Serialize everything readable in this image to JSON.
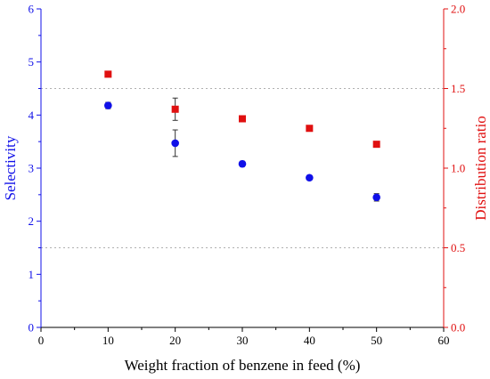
{
  "chart_data": {
    "type": "scatter",
    "xlabel": "Weight fraction of benzene in feed (%)",
    "xlim": [
      0,
      60
    ],
    "xticks": [
      0,
      10,
      20,
      30,
      40,
      50,
      60
    ],
    "y_left": {
      "label": "Selectivity",
      "ylim": [
        0,
        6
      ],
      "ticks": [
        0,
        1,
        2,
        3,
        4,
        5,
        6
      ],
      "color": "#1010e8"
    },
    "y_right": {
      "label": "Distribution ratio",
      "ylim": [
        0,
        2
      ],
      "ticks": [
        "0.0",
        "0.5",
        "1.0",
        "1.5",
        "2.0"
      ],
      "color": "#e01010"
    },
    "series": [
      {
        "axis": "left",
        "marker": "circle",
        "color": "#1010e8",
        "x": [
          10,
          20,
          30,
          40,
          50
        ],
        "y": [
          4.18,
          3.47,
          3.08,
          2.82,
          2.45
        ],
        "yerr": [
          0.06,
          0.25,
          0.05,
          0.04,
          0.07
        ]
      },
      {
        "axis": "right",
        "marker": "square",
        "color": "#e01010",
        "x": [
          10,
          20,
          30,
          40,
          50
        ],
        "y": [
          1.59,
          1.37,
          1.31,
          1.25,
          1.15
        ],
        "yerr": [
          0.01,
          0.07,
          0.01,
          0.01,
          0.01
        ]
      }
    ],
    "reference_lines": [
      {
        "axis": "right",
        "y": 1.5,
        "style": "dotted"
      },
      {
        "axis": "right",
        "y": 0.5,
        "style": "dotted"
      }
    ],
    "grid": false,
    "legend": "none"
  }
}
